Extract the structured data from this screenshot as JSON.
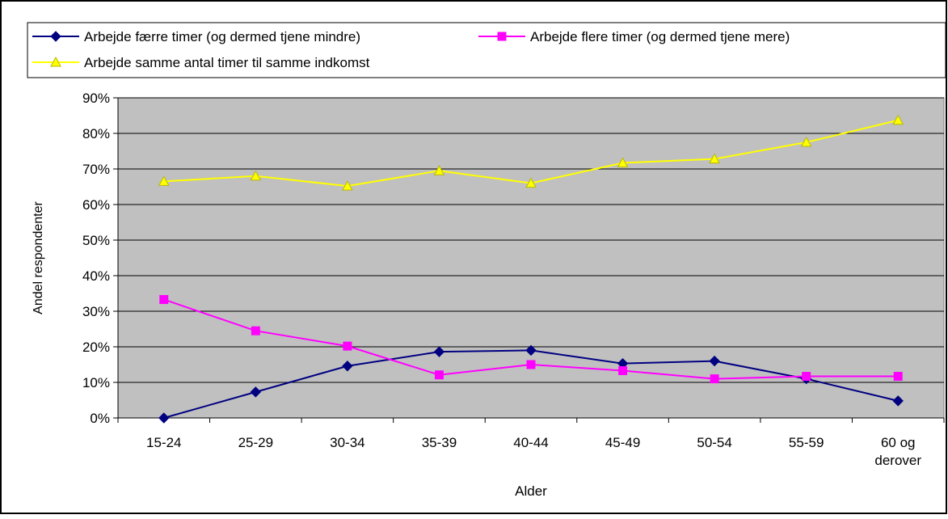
{
  "chart_data": {
    "type": "line",
    "title": "",
    "xlabel": "Alder",
    "ylabel": "Andel respondenter",
    "categories": [
      "15-24",
      "25-29",
      "30-34",
      "35-39",
      "40-44",
      "45-49",
      "50-54",
      "55-59",
      "60 og derover"
    ],
    "ylim": [
      0,
      90
    ],
    "yticks": [
      "0%",
      "10%",
      "20%",
      "30%",
      "40%",
      "50%",
      "60%",
      "70%",
      "80%",
      "90%"
    ],
    "grid": true,
    "legend_position": "top",
    "series": [
      {
        "name": "Arbejde færre timer (og dermed tjene mindre)",
        "marker": "diamond",
        "color": "#000080",
        "values": [
          0,
          7.3,
          14.6,
          18.6,
          19.0,
          15.3,
          16.0,
          11.0,
          4.8
        ]
      },
      {
        "name": "Arbejde flere timer (og dermed tjene mere)",
        "marker": "square",
        "color": "#ff00ff",
        "values": [
          33.3,
          24.5,
          20.2,
          12.1,
          15.0,
          13.3,
          11.0,
          11.7,
          11.7
        ]
      },
      {
        "name": "Arbejde samme antal timer til samme indkomst",
        "marker": "triangle",
        "color": "#ffff00",
        "values": [
          66.5,
          68.0,
          65.2,
          69.5,
          66.0,
          71.7,
          72.8,
          77.5,
          83.7
        ]
      }
    ],
    "plot_background": "#c0c0c0"
  }
}
